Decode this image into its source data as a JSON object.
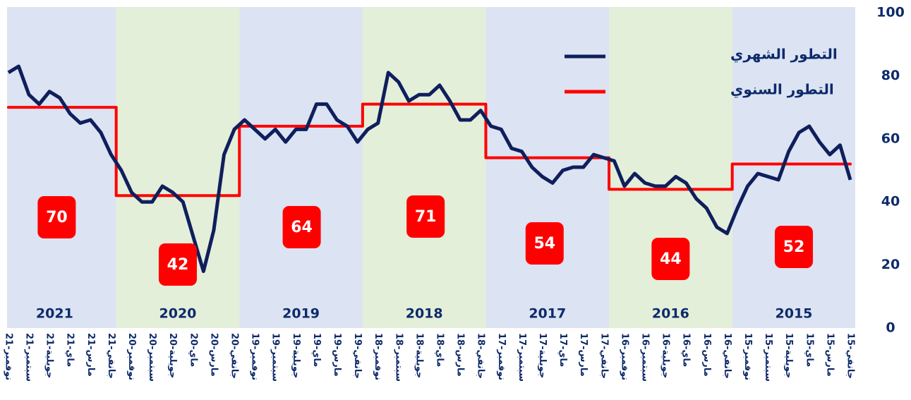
{
  "chart_data": {
    "type": "line",
    "categories": [
      "جانفي-15",
      null,
      "مارس-15",
      null,
      "ماي-15",
      null,
      "جويلية-15",
      null,
      "سبتمبر-15",
      null,
      "نوفمبر-15",
      null,
      "جانفي-16",
      null,
      "مارس-16",
      null,
      "ماي-16",
      null,
      "جويلية-16",
      null,
      "سبتمبر-16",
      null,
      "نوفمبر-16",
      null,
      "جانفي-17",
      null,
      "مارس-17",
      null,
      "ماي-17",
      null,
      "جويلية-17",
      null,
      "سبتمبر-17",
      null,
      "نوفمبر-17",
      null,
      "جانفي-18",
      null,
      "مارس-18",
      null,
      "ماي-18",
      null,
      "جويلية-18",
      null,
      "سبتمبر-18",
      null,
      "نوفمبر-18",
      null,
      "جانفي-19",
      null,
      "مارس-19",
      null,
      "ماي-19",
      null,
      "جويلية-19",
      null,
      "سبتمبر-19",
      null,
      "نوفمبر-19",
      null,
      "جانفي-20",
      null,
      "مارس-20",
      null,
      "ماي-20",
      null,
      "جويلية-20",
      null,
      "سبتمبر-20",
      null,
      "نوفمبر-20",
      null,
      "جانفي-21",
      null,
      "مارس-21",
      null,
      "ماي-21",
      null,
      "جويلية-21",
      null,
      "سبتمبر-21",
      null,
      "نوفمبر-21"
    ],
    "series": [
      {
        "name": "التطور الشهري",
        "color": "#0f1f5c",
        "values": [
          47,
          58,
          55,
          59,
          64,
          62,
          56,
          47,
          48,
          49,
          45,
          38,
          30,
          32,
          38,
          41,
          46,
          48,
          45,
          45,
          46,
          49,
          45,
          53,
          54,
          55,
          51,
          51,
          50,
          46,
          48,
          51,
          56,
          57,
          63,
          64,
          69,
          66,
          66,
          72,
          77,
          74,
          74,
          72,
          78,
          81,
          65,
          63,
          59,
          64,
          66,
          71,
          71,
          63,
          63,
          59,
          63,
          60,
          63,
          66,
          63,
          55,
          31,
          18,
          29,
          40,
          43,
          45,
          40,
          40,
          43,
          50,
          55,
          62,
          66,
          65,
          68,
          73,
          75,
          71,
          74,
          83,
          81
        ]
      }
    ],
    "annual": {
      "name": "التطور السنوي",
      "color": "#ff0000",
      "years": [
        "2015",
        "2016",
        "2017",
        "2018",
        "2019",
        "2020",
        "2021"
      ],
      "values": [
        52,
        44,
        54,
        71,
        64,
        42,
        70
      ]
    },
    "band_colors": [
      "#dce3f2",
      "#e3efd9"
    ],
    "ylim": [
      0,
      100
    ],
    "yticks": [
      0,
      20,
      40,
      60,
      80,
      100
    ],
    "grid": false,
    "x_reversed": true
  }
}
